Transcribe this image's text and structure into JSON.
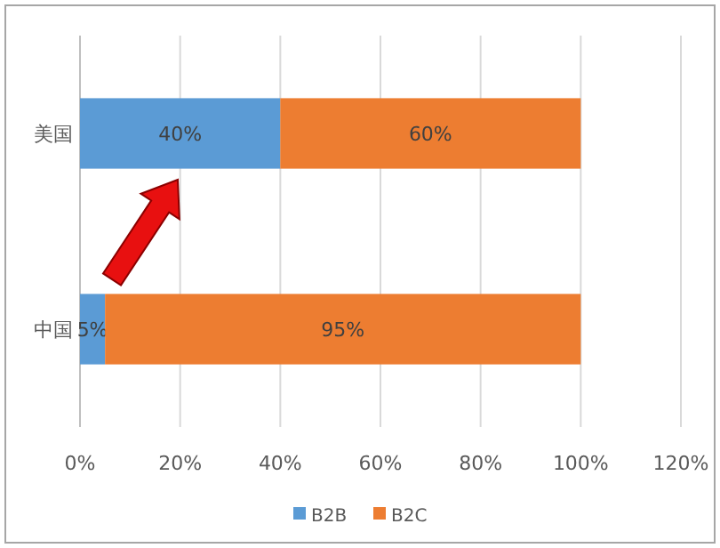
{
  "chart_data": {
    "type": "bar",
    "orientation": "horizontal",
    "stacked": true,
    "categories": [
      "美国",
      "中国"
    ],
    "series": [
      {
        "name": "B2B",
        "color": "#5b9bd5",
        "values": [
          40,
          5
        ],
        "value_labels": [
          "40%",
          "5%"
        ]
      },
      {
        "name": "B2C",
        "color": "#ed7d31",
        "values": [
          60,
          95
        ],
        "value_labels": [
          "60%",
          "95%"
        ]
      }
    ],
    "xlim": [
      0,
      120
    ],
    "xticks": [
      {
        "value": 0,
        "label": "0%"
      },
      {
        "value": 20,
        "label": "20%"
      },
      {
        "value": 40,
        "label": "40%"
      },
      {
        "value": 60,
        "label": "60%"
      },
      {
        "value": 80,
        "label": "80%"
      },
      {
        "value": 100,
        "label": "100%"
      },
      {
        "value": 120,
        "label": "120%"
      }
    ],
    "grid": "x",
    "legend": "bottom"
  }
}
